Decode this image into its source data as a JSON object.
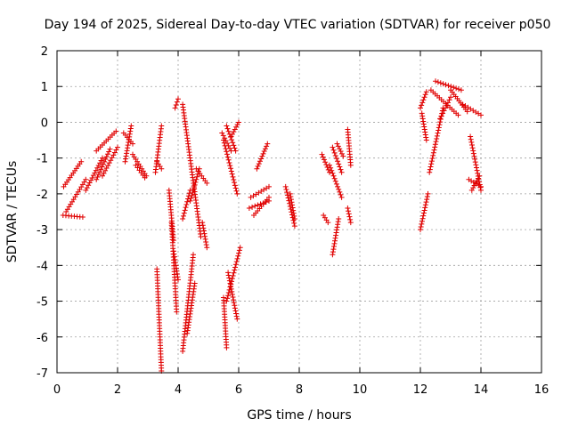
{
  "chart_data": {
    "type": "scatter",
    "title": "Day 194 of 2025, Sidereal Day-to-day VTEC variation (SDTVAR) for receiver p050",
    "xlabel": "GPS time / hours",
    "ylabel": "SDTVAR / TECUs",
    "xlim": [
      0,
      16
    ],
    "ylim": [
      -7,
      2
    ],
    "xticks": [
      "0",
      "2",
      "4",
      "6",
      "8",
      "10",
      "12",
      "14",
      "16"
    ],
    "yticks": [
      "-7",
      "-6",
      "-5",
      "-4",
      "-3",
      "-2",
      "-1",
      "0",
      "1",
      "2"
    ],
    "grid": true,
    "marker": "plus",
    "color": "#e00000",
    "segments": [
      {
        "x": [
          0.2,
          0.85
        ],
        "y": [
          -2.6,
          -2.65
        ]
      },
      {
        "x": [
          0.22,
          0.8
        ],
        "y": [
          -1.8,
          -1.1
        ]
      },
      {
        "x": [
          0.3,
          0.95
        ],
        "y": [
          -2.5,
          -1.6
        ]
      },
      {
        "x": [
          0.95,
          1.5
        ],
        "y": [
          -1.9,
          -1.0
        ]
      },
      {
        "x": [
          1.3,
          1.95
        ],
        "y": [
          -0.8,
          -0.25
        ]
      },
      {
        "x": [
          1.5,
          2.0
        ],
        "y": [
          -1.5,
          -0.7
        ]
      },
      {
        "x": [
          1.3,
          1.75
        ],
        "y": [
          -1.6,
          -0.75
        ]
      },
      {
        "x": [
          2.2,
          2.5
        ],
        "y": [
          -0.3,
          -0.6
        ]
      },
      {
        "x": [
          2.25,
          2.45
        ],
        "y": [
          -1.1,
          -0.1
        ]
      },
      {
        "x": [
          2.5,
          2.95
        ],
        "y": [
          -0.9,
          -1.5
        ]
      },
      {
        "x": [
          2.6,
          2.9
        ],
        "y": [
          -1.2,
          -1.55
        ]
      },
      {
        "x": [
          3.25,
          3.45
        ],
        "y": [
          -1.4,
          -0.1
        ]
      },
      {
        "x": [
          3.3,
          3.45
        ],
        "y": [
          -1.1,
          -1.3
        ]
      },
      {
        "x": [
          3.3,
          3.45
        ],
        "y": [
          -4.1,
          -6.95
        ]
      },
      {
        "x": [
          3.7,
          3.85
        ],
        "y": [
          -1.9,
          -3.3
        ]
      },
      {
        "x": [
          3.78,
          3.95
        ],
        "y": [
          -2.8,
          -5.3
        ]
      },
      {
        "x": [
          3.85,
          4.0
        ],
        "y": [
          -3.6,
          -4.4
        ]
      },
      {
        "x": [
          3.9,
          4.0
        ],
        "y": [
          0.4,
          0.65
        ]
      },
      {
        "x": [
          4.15,
          4.75
        ],
        "y": [
          0.5,
          -3.2
        ]
      },
      {
        "x": [
          4.15,
          4.4
        ],
        "y": [
          -2.7,
          -1.9
        ]
      },
      {
        "x": [
          4.15,
          4.5
        ],
        "y": [
          -6.4,
          -3.7
        ]
      },
      {
        "x": [
          4.3,
          4.55
        ],
        "y": [
          -5.9,
          -4.5
        ]
      },
      {
        "x": [
          4.4,
          4.7
        ],
        "y": [
          -2.2,
          -1.3
        ]
      },
      {
        "x": [
          4.6,
          4.95
        ],
        "y": [
          -1.3,
          -1.7
        ]
      },
      {
        "x": [
          4.8,
          4.95
        ],
        "y": [
          -2.8,
          -3.5
        ]
      },
      {
        "x": [
          5.45,
          5.75
        ],
        "y": [
          -0.3,
          -0.8
        ]
      },
      {
        "x": [
          5.5,
          5.95
        ],
        "y": [
          -0.5,
          -2.0
        ]
      },
      {
        "x": [
          5.6,
          5.9
        ],
        "y": [
          -0.1,
          -0.8
        ]
      },
      {
        "x": [
          5.75,
          6.0
        ],
        "y": [
          -0.4,
          0.0
        ]
      },
      {
        "x": [
          5.5,
          5.6
        ],
        "y": [
          -4.9,
          -6.3
        ]
      },
      {
        "x": [
          5.6,
          6.05
        ],
        "y": [
          -5.0,
          -3.5
        ]
      },
      {
        "x": [
          5.65,
          5.95
        ],
        "y": [
          -4.2,
          -5.5
        ]
      },
      {
        "x": [
          6.35,
          7.0
        ],
        "y": [
          -2.4,
          -2.2
        ]
      },
      {
        "x": [
          6.4,
          7.0
        ],
        "y": [
          -2.1,
          -1.8
        ]
      },
      {
        "x": [
          6.6,
          6.95
        ],
        "y": [
          -1.3,
          -0.6
        ]
      },
      {
        "x": [
          6.5,
          7.0
        ],
        "y": [
          -2.6,
          -2.1
        ]
      },
      {
        "x": [
          7.55,
          7.85
        ],
        "y": [
          -1.8,
          -2.9
        ]
      },
      {
        "x": [
          7.7,
          7.85
        ],
        "y": [
          -2.0,
          -2.7
        ]
      },
      {
        "x": [
          8.75,
          9.0
        ],
        "y": [
          -0.9,
          -1.4
        ]
      },
      {
        "x": [
          8.8,
          8.95
        ],
        "y": [
          -2.6,
          -2.8
        ]
      },
      {
        "x": [
          9.0,
          9.4
        ],
        "y": [
          -1.2,
          -2.1
        ]
      },
      {
        "x": [
          9.1,
          9.4
        ],
        "y": [
          -0.7,
          -1.4
        ]
      },
      {
        "x": [
          9.1,
          9.3
        ],
        "y": [
          -3.7,
          -2.7
        ]
      },
      {
        "x": [
          9.25,
          9.45
        ],
        "y": [
          -0.6,
          -0.95
        ]
      },
      {
        "x": [
          9.6,
          9.7
        ],
        "y": [
          -0.2,
          -1.2
        ]
      },
      {
        "x": [
          9.6,
          9.7
        ],
        "y": [
          -2.4,
          -2.8
        ]
      },
      {
        "x": [
          12.0,
          12.25
        ],
        "y": [
          -3.0,
          -2.0
        ]
      },
      {
        "x": [
          12.0,
          12.2
        ],
        "y": [
          0.4,
          0.85
        ]
      },
      {
        "x": [
          12.05,
          12.2
        ],
        "y": [
          0.25,
          -0.5
        ]
      },
      {
        "x": [
          12.3,
          12.75
        ],
        "y": [
          -1.4,
          0.4
        ]
      },
      {
        "x": [
          12.35,
          13.25
        ],
        "y": [
          0.9,
          0.2
        ]
      },
      {
        "x": [
          12.5,
          13.35
        ],
        "y": [
          1.15,
          0.9
        ]
      },
      {
        "x": [
          12.65,
          13.0
        ],
        "y": [
          0.1,
          0.7
        ]
      },
      {
        "x": [
          13.0,
          13.55
        ],
        "y": [
          0.9,
          0.3
        ]
      },
      {
        "x": [
          13.4,
          14.0
        ],
        "y": [
          0.5,
          0.2
        ]
      },
      {
        "x": [
          13.65,
          14.0
        ],
        "y": [
          -0.4,
          -1.9
        ]
      },
      {
        "x": [
          13.6,
          14.0
        ],
        "y": [
          -1.6,
          -1.8
        ]
      },
      {
        "x": [
          13.7,
          13.95
        ],
        "y": [
          -1.9,
          -1.5
        ]
      }
    ]
  }
}
